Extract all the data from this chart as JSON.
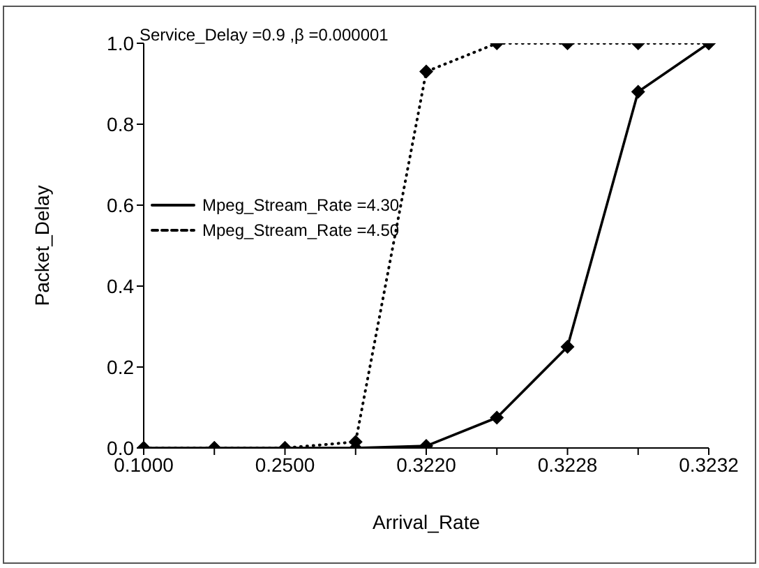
{
  "chart_data": {
    "type": "line",
    "xlabel": "Arrival_Rate",
    "ylabel": "Packet_Delay",
    "annotations": [
      "Service_Delay =0.9 ,β =0.000001"
    ],
    "categories": [
      "0.1000",
      null,
      "0.2500",
      null,
      "0.3220",
      null,
      "0.3228",
      null,
      "0.3232"
    ],
    "series": [
      {
        "name": "Mpeg_Stream_Rate =4.30",
        "color": "#000000",
        "line_style": "solid",
        "values": [
          0,
          0,
          0,
          0,
          0.005,
          0.075,
          0.25,
          0.88,
          1.0
        ]
      },
      {
        "name": "Mpeg_Stream_Rate =4.50",
        "color": "#000000",
        "line_style": "dotted",
        "values": [
          0,
          0,
          0,
          0.015,
          0.93,
          1.0,
          1.0,
          1.0,
          1.0
        ]
      }
    ],
    "ylim": [
      0,
      1
    ],
    "yticks": [
      {
        "value": 0,
        "label": "0.0"
      },
      {
        "value": 0.2,
        "label": "0.2"
      },
      {
        "value": 0.4,
        "label": "0.4"
      },
      {
        "value": 0.6,
        "label": "0.6"
      },
      {
        "value": 0.8,
        "label": "0.8"
      },
      {
        "value": 1,
        "label": "1.0"
      }
    ],
    "marker": "diamond",
    "grid": false,
    "legend": "left"
  }
}
